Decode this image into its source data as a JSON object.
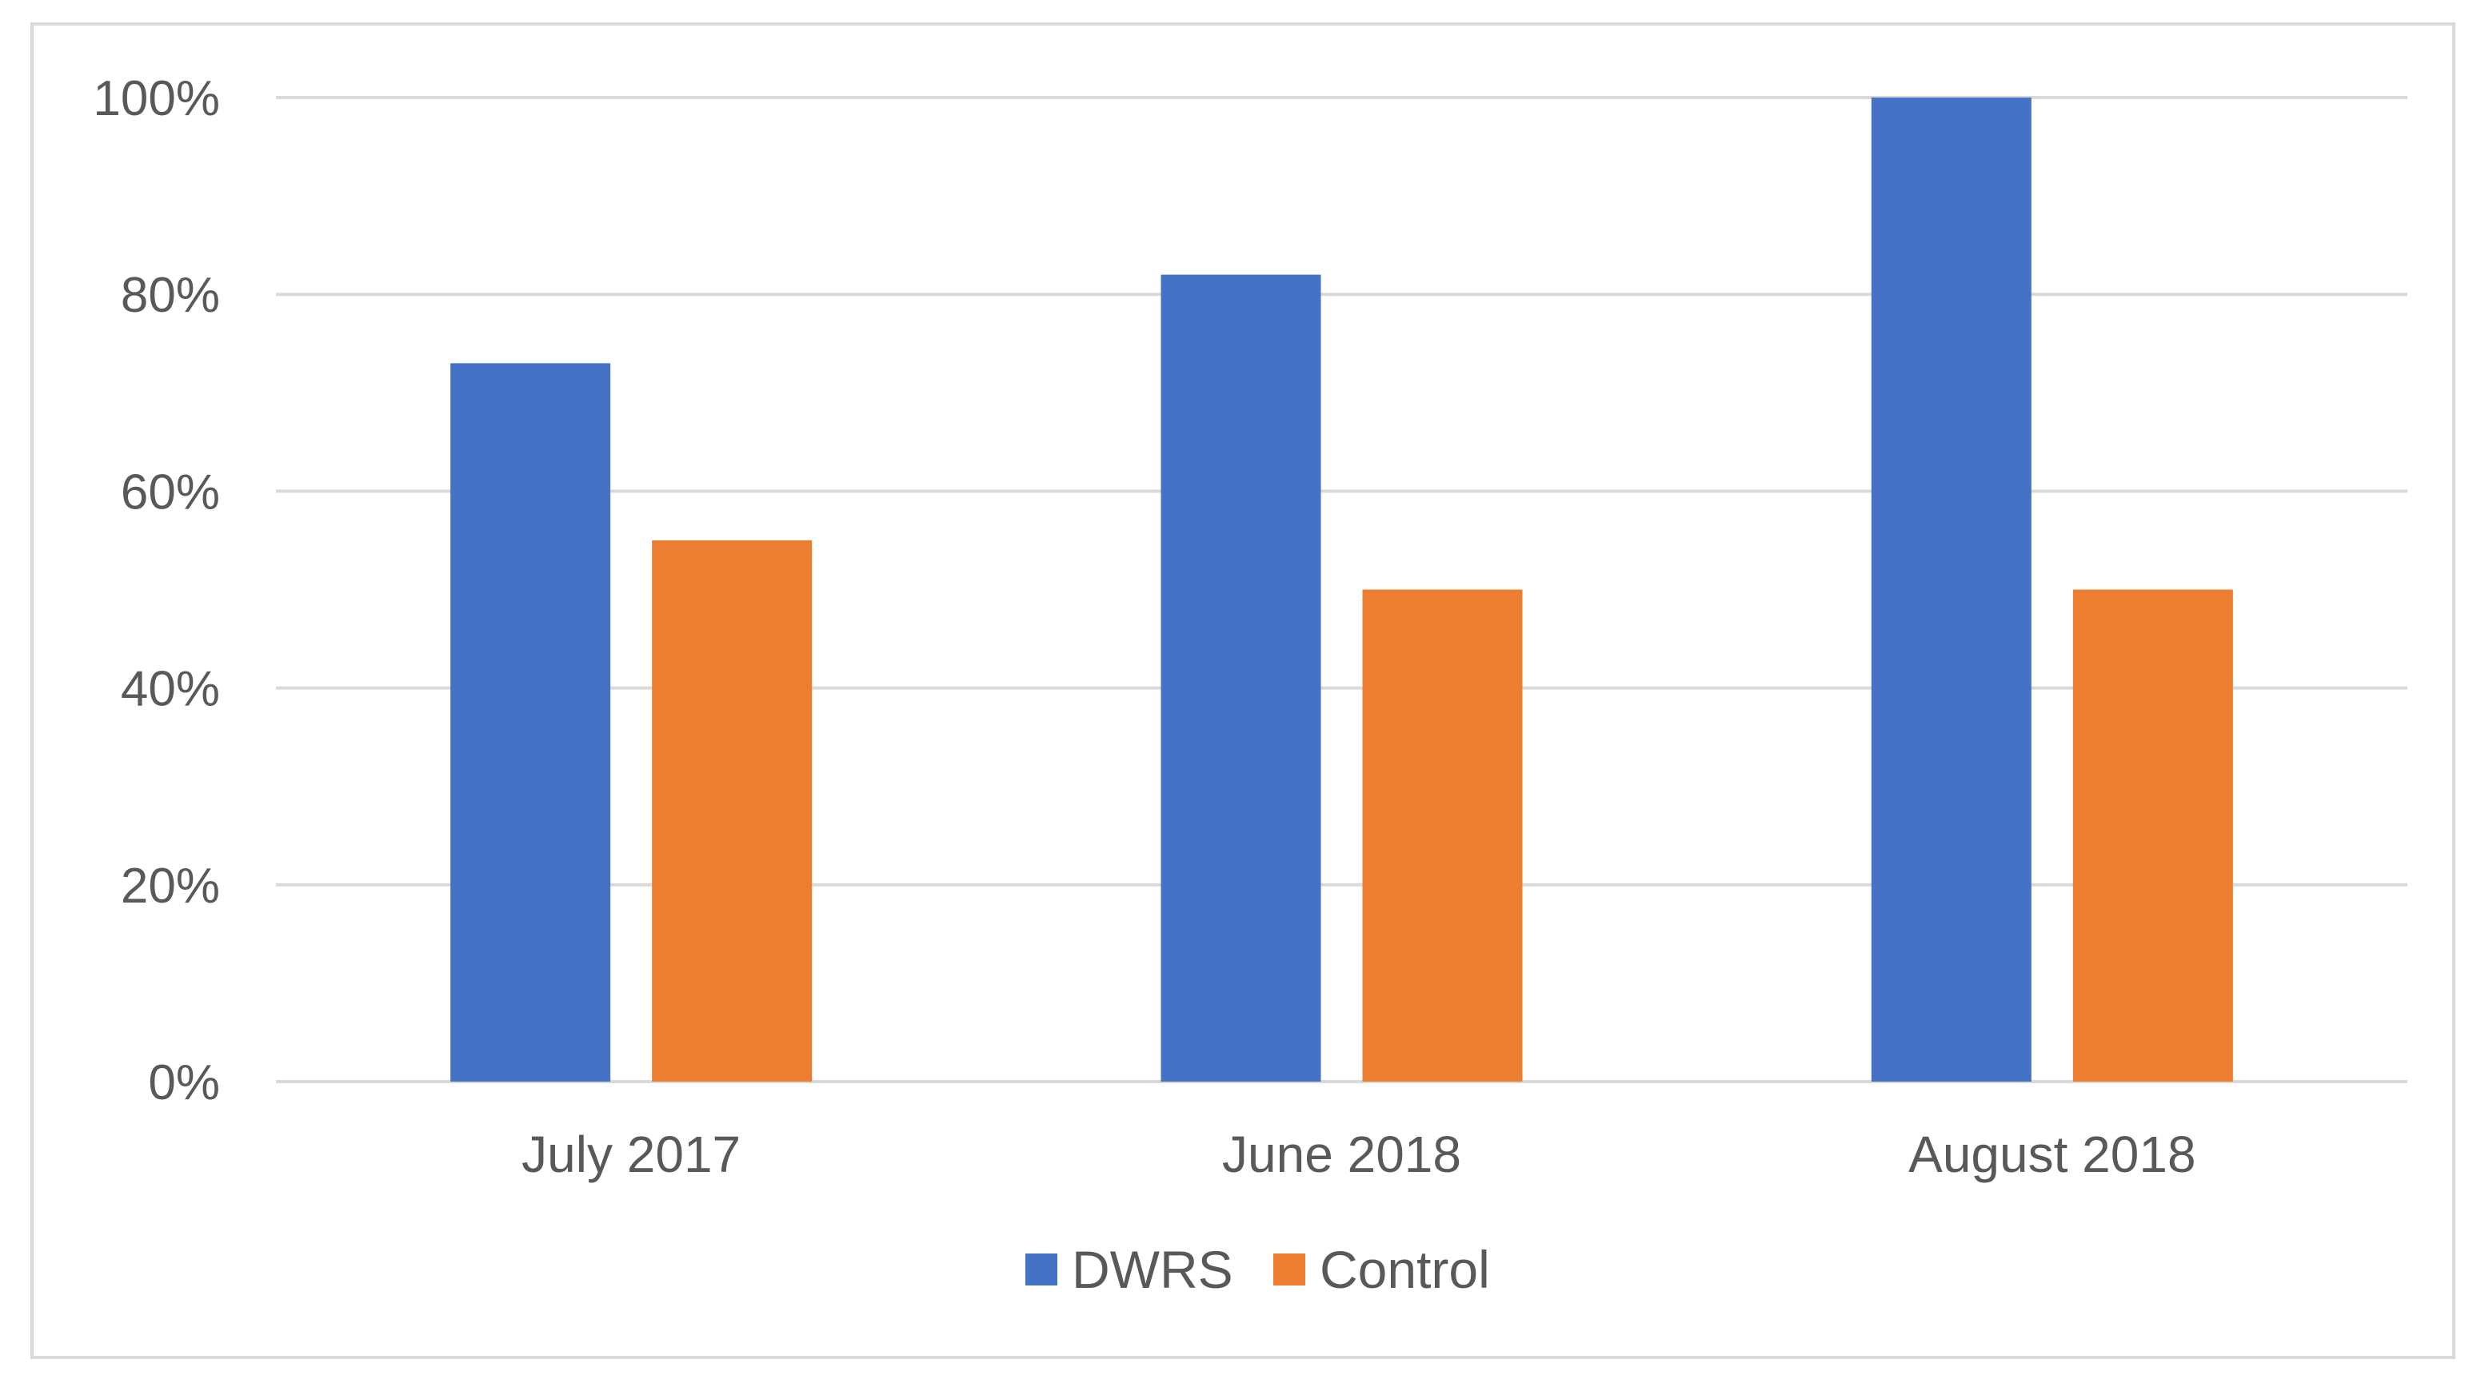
{
  "chart_data": {
    "type": "bar",
    "title": "",
    "xlabel": "",
    "ylabel": "",
    "categories": [
      "July 2017",
      "June 2018",
      "August 2018"
    ],
    "series": [
      {
        "name": "DWRS",
        "color": "#4472c4",
        "values": [
          73,
          82,
          100
        ]
      },
      {
        "name": "Control",
        "color": "#ed7d31",
        "values": [
          55,
          50,
          50
        ]
      }
    ],
    "ylim": [
      0,
      100
    ],
    "yticks": [
      0,
      20,
      40,
      60,
      80,
      100
    ],
    "ytick_labels": [
      "0%",
      "20%",
      "40%",
      "60%",
      "80%",
      "100%"
    ],
    "grid": true,
    "legend_position": "bottom"
  }
}
